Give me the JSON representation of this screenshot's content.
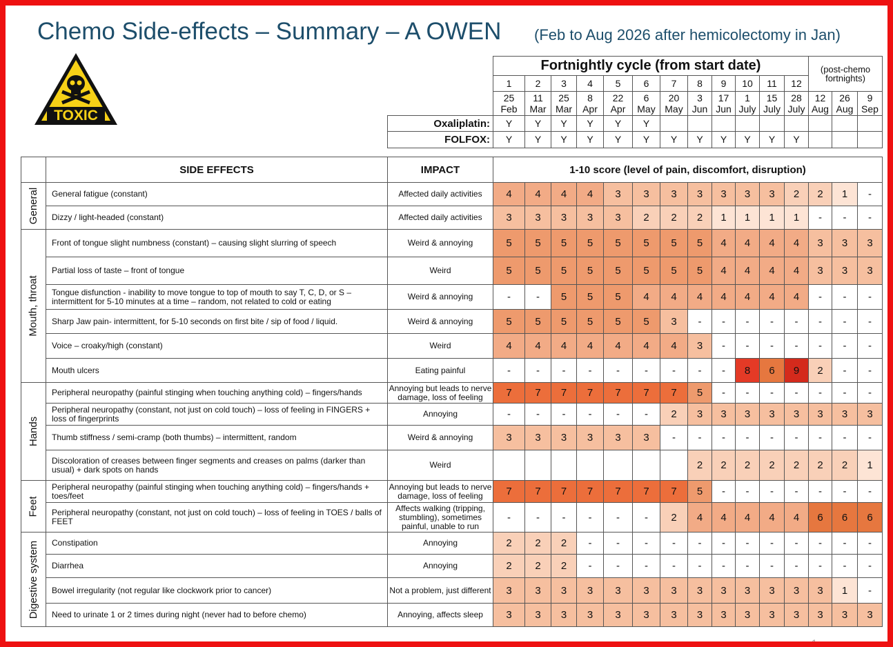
{
  "title": "Chemo Side-effects – Summary – A OWEN",
  "subtitle": "(Feb to Aug 2026 after hemicolectomy in Jan)",
  "icon_label": "TOXIC",
  "page_number": "1",
  "schedule": {
    "header": "Fortnightly cycle (from start date)",
    "post_header": "(post-chemo fortnights)",
    "cycles": [
      "1",
      "2",
      "3",
      "4",
      "5",
      "6",
      "7",
      "8",
      "9",
      "10",
      "11",
      "12"
    ],
    "dates": [
      [
        "25",
        "Feb"
      ],
      [
        "11",
        "Mar"
      ],
      [
        "25",
        "Mar"
      ],
      [
        "8",
        "Apr"
      ],
      [
        "22",
        "Apr"
      ],
      [
        "6",
        "May"
      ],
      [
        "20",
        "May"
      ],
      [
        "3",
        "Jun"
      ],
      [
        "17",
        "Jun"
      ],
      [
        "1",
        "July"
      ],
      [
        "15",
        "July"
      ],
      [
        "28",
        "July"
      ],
      [
        "12",
        "Aug"
      ],
      [
        "26",
        "Aug"
      ],
      [
        "9",
        "Sep"
      ]
    ],
    "rows": [
      {
        "label": "Oxaliplatin:",
        "values": [
          "Y",
          "Y",
          "Y",
          "Y",
          "Y",
          "Y",
          null,
          null,
          null,
          null,
          null,
          null,
          null,
          null,
          null
        ]
      },
      {
        "label": "FOLFOX:",
        "values": [
          "Y",
          "Y",
          "Y",
          "Y",
          "Y",
          "Y",
          "Y",
          "Y",
          "Y",
          "Y",
          "Y",
          "Y",
          null,
          null,
          null
        ]
      }
    ]
  },
  "table": {
    "headers": [
      "SIDE EFFECTS",
      "IMPACT",
      "1-10 score (level of pain, discomfort, disruption)"
    ],
    "groups": [
      {
        "name": "General",
        "rows": [
          {
            "effect": "General fatigue (constant)",
            "impact": "Affected daily activities",
            "scores": [
              4,
              4,
              4,
              4,
              3,
              3,
              3,
              3,
              3,
              3,
              3,
              2,
              2,
              1,
              "-"
            ]
          },
          {
            "effect": "Dizzy / light-headed (constant)",
            "impact": "Affected daily activities",
            "scores": [
              3,
              3,
              3,
              3,
              3,
              2,
              2,
              2,
              1,
              1,
              1,
              1,
              "-",
              "-",
              "-"
            ]
          }
        ]
      },
      {
        "name": "Mouth, throat",
        "rows": [
          {
            "effect": "Front of tongue slight numbness (constant) – causing slight slurring of speech",
            "impact": "Weird & annoying",
            "scores": [
              5,
              5,
              5,
              5,
              5,
              5,
              5,
              5,
              4,
              4,
              4,
              4,
              3,
              3,
              3
            ]
          },
          {
            "effect": "Partial loss of taste – front of tongue",
            "impact": "Weird",
            "scores": [
              5,
              5,
              5,
              5,
              5,
              5,
              5,
              5,
              4,
              4,
              4,
              4,
              3,
              3,
              3
            ]
          },
          {
            "effect": "Tongue disfunction - inability to move tongue to top of mouth to say T, C, D, or  S – intermittent for 5-10 minutes at a time – random, not related to cold or eating",
            "impact": "Weird & annoying",
            "scores": [
              "-",
              "-",
              5,
              5,
              5,
              4,
              4,
              4,
              4,
              4,
              4,
              4,
              "-",
              "-",
              "-"
            ]
          },
          {
            "effect": "Sharp Jaw pain- intermittent, for 5-10 seconds on first bite / sip of  food / liquid.",
            "impact": "Weird & annoying",
            "scores": [
              5,
              5,
              5,
              5,
              5,
              5,
              3,
              "-",
              "-",
              "-",
              "-",
              "-",
              "-",
              "-",
              "-"
            ]
          },
          {
            "effect": "Voice – croaky/high (constant)",
            "impact": "Weird",
            "scores": [
              4,
              4,
              4,
              4,
              4,
              4,
              4,
              3,
              "-",
              "-",
              "-",
              "-",
              "-",
              "-",
              "-"
            ]
          },
          {
            "effect": "Mouth ulcers",
            "impact": "Eating painful",
            "scores": [
              "-",
              "-",
              "-",
              "-",
              "-",
              "-",
              "-",
              "-",
              "-",
              8,
              6,
              9,
              2,
              "-",
              "-"
            ]
          }
        ]
      },
      {
        "name": "Hands",
        "rows": [
          {
            "effect": "Peripheral neuropathy (painful stinging when touching anything cold) – fingers/hands",
            "impact": "Annoying but leads to nerve damage, loss of feeling",
            "scores": [
              7,
              7,
              7,
              7,
              7,
              7,
              7,
              5,
              "-",
              "-",
              "-",
              "-",
              "-",
              "-",
              "-"
            ]
          },
          {
            "effect": "Peripheral neuropathy (constant, not just on cold touch) – loss of feeling in FINGERS + loss of fingerprints",
            "impact": "Annoying",
            "scores": [
              "-",
              "-",
              "-",
              "-",
              "-",
              "-",
              2,
              3,
              3,
              3,
              3,
              3,
              3,
              3,
              3
            ]
          },
          {
            "effect": "Thumb stiffness / semi-cramp (both thumbs) –  intermittent, random",
            "impact": "Weird & annoying",
            "scores": [
              3,
              3,
              3,
              3,
              3,
              3,
              "-",
              "-",
              "-",
              "-",
              "-",
              "-",
              "-",
              "-",
              "-"
            ]
          },
          {
            "effect": "Discoloration of creases between finger segments and creases on palms (darker than usual) + dark spots on hands",
            "impact": "Weird",
            "scores": [
              null,
              null,
              null,
              null,
              null,
              null,
              null,
              2,
              2,
              2,
              2,
              2,
              2,
              2,
              1
            ]
          }
        ]
      },
      {
        "name": "Feet",
        "rows": [
          {
            "effect": "Peripheral neuropathy (painful stinging when touching anything cold) – fingers/hands + toes/feet",
            "impact": "Annoying but leads to nerve damage, loss of feeling",
            "scores": [
              7,
              7,
              7,
              7,
              7,
              7,
              7,
              5,
              "-",
              "-",
              "-",
              "-",
              "-",
              "-",
              "-"
            ]
          },
          {
            "effect": "Peripheral neuropathy (constant, not just on cold touch) – loss of feeling in TOES / balls of FEET",
            "impact": "Affects walking (tripping, stumbling), sometimes painful,  unable to run",
            "scores": [
              "-",
              "-",
              "-",
              "-",
              "-",
              "-",
              2,
              4,
              4,
              4,
              4,
              4,
              6,
              6,
              6
            ]
          }
        ]
      },
      {
        "name": "Digestive system",
        "rows": [
          {
            "effect": "Constipation",
            "impact": "Annoying",
            "scores": [
              2,
              2,
              2,
              "-",
              "-",
              "-",
              "-",
              "-",
              "-",
              "-",
              "-",
              "-",
              "-",
              "-",
              "-"
            ]
          },
          {
            "effect": "Diarrhea",
            "impact": "Annoying",
            "scores": [
              2,
              2,
              2,
              "-",
              "-",
              "-",
              "-",
              "-",
              "-",
              "-",
              "-",
              "-",
              "-",
              "-",
              "-"
            ]
          },
          {
            "effect": "Bowel irregularity (not regular like clockwork prior to cancer)",
            "impact": "Not a problem, just different",
            "scores": [
              3,
              3,
              3,
              3,
              3,
              3,
              3,
              3,
              3,
              3,
              3,
              3,
              3,
              1,
              "-"
            ]
          },
          {
            "effect": "Need to urinate 1 or 2 times during night (never had to before chemo)",
            "impact": "Annoying, affects sleep",
            "scores": [
              3,
              3,
              3,
              3,
              3,
              3,
              3,
              3,
              3,
              3,
              3,
              3,
              3,
              3,
              3
            ]
          }
        ]
      }
    ]
  }
}
